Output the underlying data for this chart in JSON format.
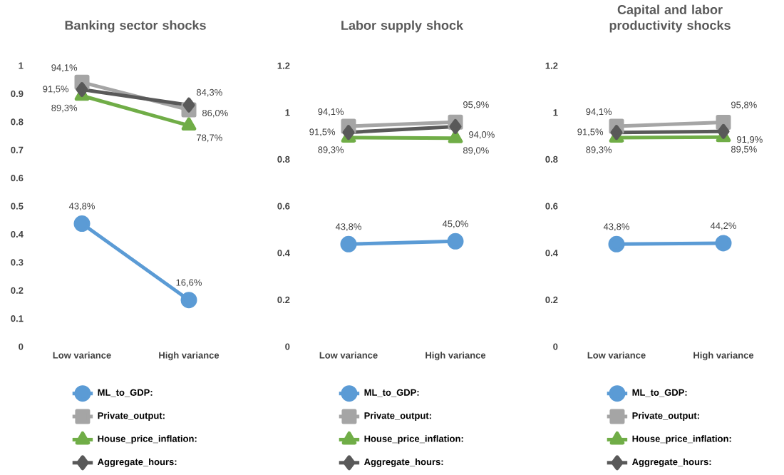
{
  "chart_data": [
    {
      "type": "line",
      "title": "Banking sector shocks",
      "categories": [
        "Low variance",
        "High variance"
      ],
      "ylim": [
        0,
        1
      ],
      "yticks": [
        0,
        0.1,
        0.2,
        0.3,
        0.4,
        0.5,
        0.6,
        0.7,
        0.8,
        0.9,
        1
      ],
      "legend": "bottom",
      "series": [
        {
          "name": "ML_to_GDP:",
          "color": "#5b9bd5",
          "marker": "circle",
          "values": [
            0.438,
            0.166
          ],
          "value_labels": [
            "43,8%",
            "16,6%"
          ]
        },
        {
          "name": "Private_output:",
          "color": "#a5a5a5",
          "marker": "square",
          "values": [
            0.941,
            0.843
          ],
          "value_labels": [
            "94,1%",
            "84,3%"
          ]
        },
        {
          "name": "House_price_inflation:",
          "color": "#70ad47",
          "marker": "triangle",
          "values": [
            0.893,
            0.787
          ],
          "value_labels": [
            "89,3%",
            "78,7%"
          ]
        },
        {
          "name": "Aggregate_hours:",
          "color": "#595959",
          "marker": "diamond",
          "values": [
            0.915,
            0.86
          ],
          "value_labels": [
            "91,5%",
            "86,0%"
          ]
        }
      ]
    },
    {
      "type": "line",
      "title": "Labor supply shock",
      "categories": [
        "Low variance",
        "High variance"
      ],
      "ylim": [
        0,
        1.2
      ],
      "yticks": [
        0,
        0.2,
        0.4,
        0.6,
        0.8,
        1,
        1.2
      ],
      "legend": "bottom",
      "series": [
        {
          "name": "ML_to_GDP:",
          "color": "#5b9bd5",
          "marker": "circle",
          "values": [
            0.438,
            0.45
          ],
          "value_labels": [
            "43,8%",
            "45,0%"
          ]
        },
        {
          "name": "Private_output:",
          "color": "#a5a5a5",
          "marker": "square",
          "values": [
            0.941,
            0.959
          ],
          "value_labels": [
            "94,1%",
            "95,9%"
          ]
        },
        {
          "name": "House_price_inflation:",
          "color": "#70ad47",
          "marker": "triangle",
          "values": [
            0.893,
            0.89
          ],
          "value_labels": [
            "89,3%",
            "89,0%"
          ]
        },
        {
          "name": "Aggregate_hours:",
          "color": "#595959",
          "marker": "diamond",
          "values": [
            0.915,
            0.94
          ],
          "value_labels": [
            "91,5%",
            "94,0%"
          ]
        }
      ]
    },
    {
      "type": "line",
      "title": "Capital and labor productivity shocks",
      "categories": [
        "Low variance",
        "High variance"
      ],
      "ylim": [
        0,
        1.2
      ],
      "yticks": [
        0,
        0.2,
        0.4,
        0.6,
        0.8,
        1,
        1.2
      ],
      "legend": "bottom",
      "series": [
        {
          "name": "ML_to_GDP:",
          "color": "#5b9bd5",
          "marker": "circle",
          "values": [
            0.438,
            0.442
          ],
          "value_labels": [
            "43,8%",
            "44,2%"
          ]
        },
        {
          "name": "Private_output:",
          "color": "#a5a5a5",
          "marker": "square",
          "values": [
            0.941,
            0.958
          ],
          "value_labels": [
            "94,1%",
            "95,8%"
          ]
        },
        {
          "name": "House_price_inflation:",
          "color": "#70ad47",
          "marker": "triangle",
          "values": [
            0.893,
            0.895
          ],
          "value_labels": [
            "89,3%",
            "89,5%"
          ]
        },
        {
          "name": "Aggregate_hours:",
          "color": "#595959",
          "marker": "diamond",
          "values": [
            0.915,
            0.919
          ],
          "value_labels": [
            "91,5%",
            "91,9%"
          ]
        }
      ]
    }
  ]
}
